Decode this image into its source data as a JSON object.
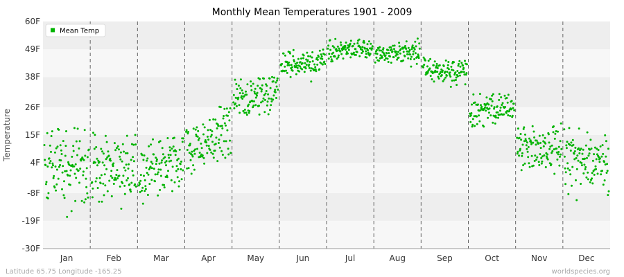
{
  "colors": {
    "point": "#00b300",
    "band_light": "#f7f7f7",
    "band_dark": "#eeeeee",
    "grid_dashed": "#666666",
    "axis": "#999999"
  },
  "footer": {
    "left": "Latitude 65.75 Longitude -165.25",
    "right": "worldspecies.org"
  },
  "chart_data": {
    "type": "scatter",
    "title": "Monthly Mean Temperatures 1901 - 2009",
    "xlabel": "",
    "ylabel": "Temperature",
    "ylim": [
      -30,
      60
    ],
    "yticks": [
      -30,
      -19,
      -8,
      4,
      15,
      26,
      38,
      49,
      60
    ],
    "ytick_labels": [
      "-30F",
      "-19F",
      "-8F",
      "4F",
      "15F",
      "26F",
      "38F",
      "49F",
      "60F"
    ],
    "categories": [
      "Jan",
      "Feb",
      "Mar",
      "Apr",
      "May",
      "Jun",
      "Jul",
      "Aug",
      "Sep",
      "Oct",
      "Nov",
      "Dec"
    ],
    "legend": {
      "label": "Mean Temp",
      "position": "top-left"
    },
    "grid": true,
    "series": [
      {
        "name": "Mean Temp",
        "months": [
          {
            "month": "Jan",
            "y_start": 2,
            "y_end": 3,
            "spread": 8,
            "y_min": -18,
            "y_max": 18
          },
          {
            "month": "Feb",
            "y_start": 0,
            "y_end": 3,
            "spread": 8,
            "y_min": -21,
            "y_max": 16
          },
          {
            "month": "Mar",
            "y_start": 0,
            "y_end": 7,
            "spread": 6,
            "y_min": -13,
            "y_max": 14
          },
          {
            "month": "Apr",
            "y_start": 9,
            "y_end": 18,
            "spread": 6,
            "y_min": -3,
            "y_max": 27
          },
          {
            "month": "May",
            "y_start": 29,
            "y_end": 33,
            "spread": 4,
            "y_min": 23,
            "y_max": 38
          },
          {
            "month": "Jun",
            "y_start": 42,
            "y_end": 44,
            "spread": 2.5,
            "y_min": 36,
            "y_max": 49
          },
          {
            "month": "Jul",
            "y_start": 48,
            "y_end": 50,
            "spread": 2,
            "y_min": 44,
            "y_max": 54
          },
          {
            "month": "Aug",
            "y_start": 47,
            "y_end": 48,
            "spread": 2,
            "y_min": 42,
            "y_max": 54
          },
          {
            "month": "Sep",
            "y_start": 41,
            "y_end": 40,
            "spread": 2.5,
            "y_min": 34,
            "y_max": 46
          },
          {
            "month": "Oct",
            "y_start": 24,
            "y_end": 26,
            "spread": 3,
            "y_min": 17,
            "y_max": 32
          },
          {
            "month": "Nov",
            "y_start": 11,
            "y_end": 10,
            "spread": 5,
            "y_min": -3,
            "y_max": 20
          },
          {
            "month": "Dec",
            "y_start": 2,
            "y_end": 5,
            "spread": 6,
            "y_min": -13,
            "y_max": 18
          }
        ],
        "points_per_month": 109
      }
    ]
  }
}
